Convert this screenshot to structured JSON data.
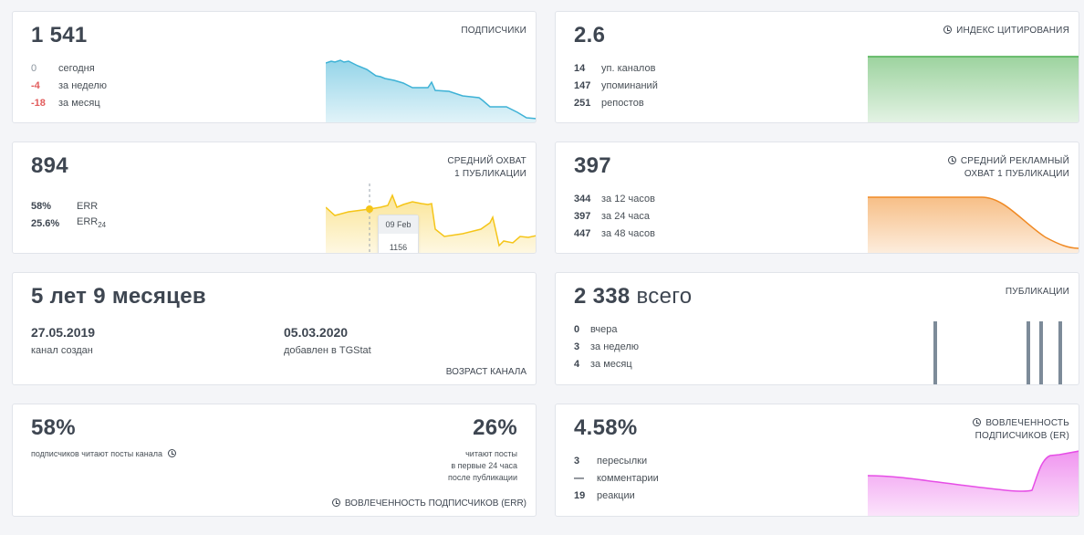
{
  "subscribers": {
    "value": "1 541",
    "label": "ПОДПИСЧИКИ",
    "rows": [
      {
        "n": "0",
        "t": "сегодня"
      },
      {
        "n": "-4",
        "t": "за неделю"
      },
      {
        "n": "-18",
        "t": "за месяц"
      }
    ],
    "color": "#3eb2d6"
  },
  "citation": {
    "value": "2.6",
    "label": "ИНДЕКС ЦИТИРОВАНИЯ",
    "rows": [
      {
        "n": "14",
        "t": "уп. каналов"
      },
      {
        "n": "147",
        "t": "упоминаний"
      },
      {
        "n": "251",
        "t": "репостов"
      }
    ],
    "color": "#4caf50"
  },
  "reach": {
    "value": "894",
    "label1": "СРЕДНИЙ ОХВАТ",
    "label2": "1 ПУБЛИКАЦИИ",
    "rows": [
      {
        "n": "58%",
        "t": "ERR"
      },
      {
        "n": "25.6%",
        "t": "ERR",
        "sub": "24"
      }
    ],
    "tooltip": {
      "date": "09 Feb",
      "value": "1156"
    },
    "color": "#f5c518"
  },
  "ad_reach": {
    "value": "397",
    "label1": "СРЕДНИЙ РЕКЛАМНЫЙ",
    "label2": "ОХВАТ 1 ПУБЛИКАЦИИ",
    "rows": [
      {
        "n": "344",
        "t": "за 12 часов"
      },
      {
        "n": "397",
        "t": "за 24 часа"
      },
      {
        "n": "447",
        "t": "за 48 часов"
      }
    ],
    "color": "#f08a24"
  },
  "age": {
    "value": "5 лет 9 месяцев",
    "created_date": "27.05.2019",
    "created_caption": "канал создан",
    "added_date": "05.03.2020",
    "added_caption": "добавлен в TGStat",
    "label": "ВОЗРАСТ КАНАЛА"
  },
  "posts": {
    "value": "2 338",
    "unit": "всего",
    "label": "ПУБЛИКАЦИИ",
    "rows": [
      {
        "n": "0",
        "t": "вчера"
      },
      {
        "n": "3",
        "t": "за неделю"
      },
      {
        "n": "4",
        "t": "за месяц"
      }
    ],
    "color": "#7d8b99"
  },
  "err": {
    "left_value": "58%",
    "left_caption": "подписчиков читают посты канала",
    "right_value": "26%",
    "right_caption1": "читают посты",
    "right_caption2": "в первые 24 часа",
    "right_caption3": "после публикации",
    "label": "ВОВЛЕЧЕННОСТЬ ПОДПИСЧИКОВ (ERR)"
  },
  "er": {
    "value": "4.58%",
    "label1": "ВОВЛЕЧЕННОСТЬ",
    "label2": "ПОДПИСЧИКОВ (ER)",
    "rows": [
      {
        "n": "3",
        "t": "пересылки"
      },
      {
        "n": "—",
        "t": "комментарии"
      },
      {
        "n": "19",
        "t": "реакции"
      }
    ],
    "color": "#e64ee6"
  }
}
